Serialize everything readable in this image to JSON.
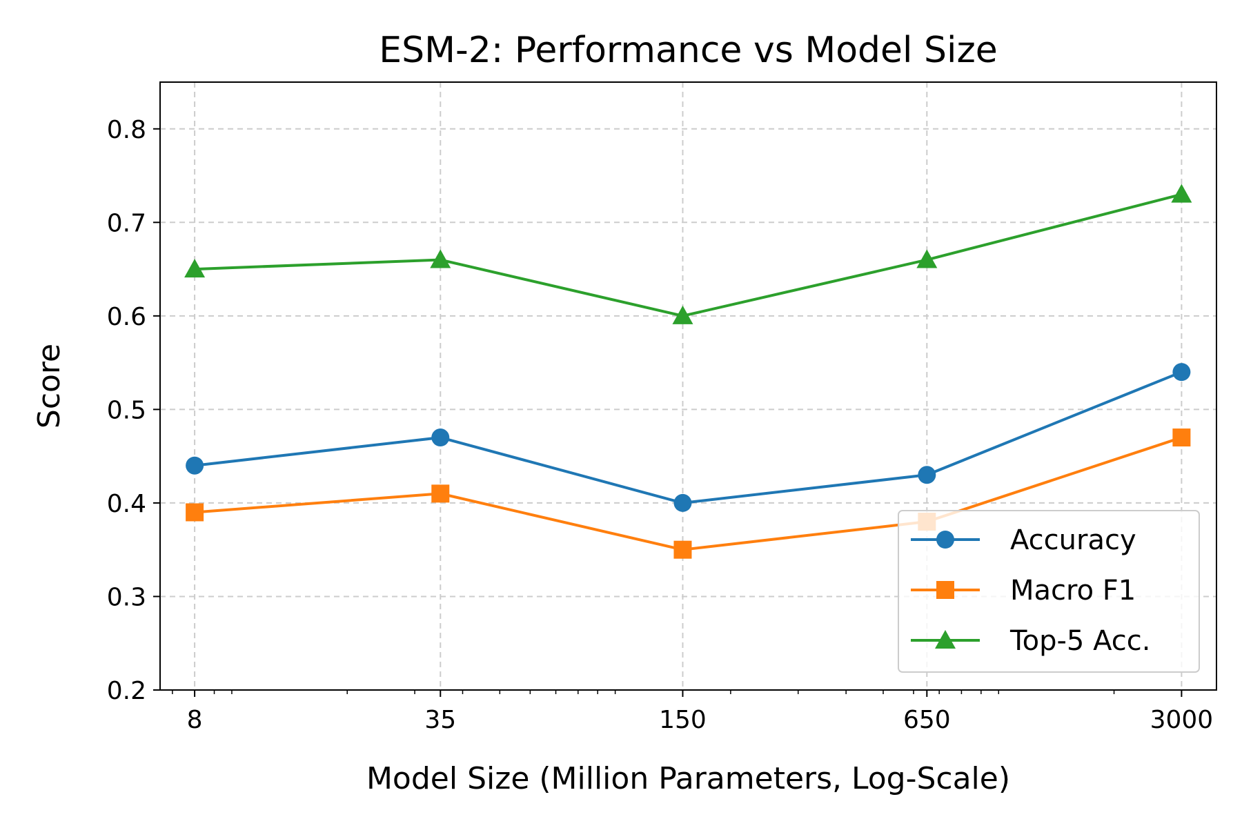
{
  "chart_data": {
    "type": "line",
    "title": "ESM-2: Performance vs Model Size",
    "xlabel": "Model Size (Million Parameters, Log-Scale)",
    "ylabel": "Score",
    "x_scale": "log",
    "x": [
      8,
      35,
      150,
      650,
      3000
    ],
    "x_tick_labels": [
      "8",
      "35",
      "150",
      "650",
      "3000"
    ],
    "ylim": [
      0.2,
      0.85
    ],
    "y_ticks": [
      0.2,
      0.3,
      0.4,
      0.5,
      0.6,
      0.7,
      0.8
    ],
    "y_tick_labels": [
      "0.2",
      "0.3",
      "0.4",
      "0.5",
      "0.6",
      "0.7",
      "0.8"
    ],
    "grid": true,
    "legend_position": "lower-right",
    "series": [
      {
        "name": "Accuracy",
        "marker": "circle",
        "color": "#1f77b4",
        "values": [
          0.44,
          0.47,
          0.4,
          0.43,
          0.54
        ]
      },
      {
        "name": "Macro F1",
        "marker": "square",
        "color": "#ff7f0e",
        "values": [
          0.39,
          0.41,
          0.35,
          0.38,
          0.47
        ]
      },
      {
        "name": "Top-5 Acc.",
        "marker": "triangle",
        "color": "#2ca02c",
        "values": [
          0.65,
          0.66,
          0.6,
          0.66,
          0.73
        ]
      }
    ]
  }
}
